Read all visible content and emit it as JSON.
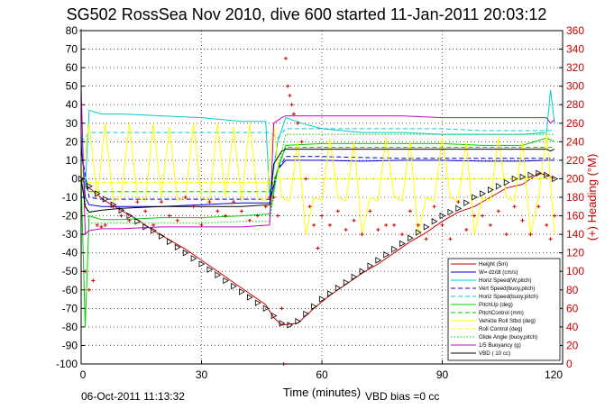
{
  "chart_data": {
    "type": "line",
    "title": "SG502 RossSea Nov 2010, dive 600 started 11-Jan-2011 20:03:12",
    "xlabel": "Time (minutes)",
    "ylabel_right": "(+) Heading (°M)",
    "xlim": [
      0,
      120
    ],
    "ylim": [
      -100,
      80
    ],
    "ylim_right": [
      0,
      360
    ],
    "x_ticks": [
      "0",
      "30",
      "60",
      "90",
      "120"
    ],
    "y_ticks": [
      "-100",
      "-90",
      "-80",
      "-70",
      "-60",
      "-50",
      "-40",
      "-30",
      "-20",
      "-10",
      "0",
      "10",
      "20",
      "30",
      "40",
      "50",
      "60",
      "70",
      "80"
    ],
    "y_ticks_right": [
      "0",
      "20",
      "40",
      "60",
      "80",
      "100",
      "120",
      "140",
      "160",
      "180",
      "200",
      "220",
      "240",
      "260",
      "280",
      "300",
      "320",
      "340",
      "360"
    ],
    "grid": true,
    "legend_position": "bottom-right",
    "footer_date": "06-Oct-2011 11:13:32",
    "footer_note": "VBD bias =0 cc",
    "series": [
      {
        "name": "Height (5m)",
        "color": "#cc0000",
        "style": "solid",
        "x": [
          0,
          2,
          6,
          10,
          14,
          18,
          22,
          26,
          30,
          34,
          38,
          42,
          46,
          48,
          50,
          54,
          58,
          62,
          66,
          70,
          74,
          78,
          82,
          86,
          90,
          94,
          98,
          102,
          106,
          110,
          114,
          116,
          118
        ],
        "y": [
          0,
          -5,
          -12,
          -17,
          -22,
          -28,
          -33,
          -38,
          -44,
          -50,
          -56,
          -62,
          -68,
          -75,
          -79,
          -78,
          -70,
          -63,
          -57,
          -51,
          -46,
          -40,
          -34,
          -29,
          -23,
          -18,
          -15,
          -10,
          -5,
          -3,
          3,
          2,
          0
        ]
      },
      {
        "name": "W= dz/dt (cm/s)",
        "color": "#0000cc",
        "style": "solid",
        "x": [
          0,
          1,
          2,
          5,
          10,
          20,
          30,
          40,
          47,
          49,
          51,
          55,
          60,
          70,
          80,
          90,
          100,
          105,
          110,
          116,
          118
        ],
        "y": [
          20,
          -10,
          -14,
          -15,
          -15,
          -15,
          -14,
          -13,
          -13,
          5,
          10,
          10,
          10,
          9.5,
          10,
          10,
          9.5,
          9.5,
          9.5,
          10,
          10
        ]
      },
      {
        "name": "Horiz Speed(W,pitch)",
        "color": "#00cccc",
        "style": "solid",
        "x": [
          0,
          1,
          2,
          5,
          10,
          20,
          30,
          40,
          46,
          47,
          49,
          51,
          55,
          60,
          70,
          80,
          90,
          100,
          110,
          116,
          117,
          118
        ],
        "y": [
          25,
          -5,
          37,
          35,
          35,
          34,
          33,
          31,
          31,
          -10,
          20,
          33,
          30,
          27,
          25,
          25,
          24,
          24,
          24,
          25,
          48,
          30
        ]
      },
      {
        "name": "Vert Speed(buoy,pitch)",
        "color": "#0000cc",
        "style": "dashed",
        "x": [
          0,
          2,
          5,
          10,
          20,
          30,
          40,
          47,
          49,
          51,
          60,
          70,
          80,
          90,
          100,
          110,
          118
        ],
        "y": [
          15,
          -10,
          -11,
          -11,
          -11,
          -11,
          -11,
          -11,
          5,
          12,
          12,
          11.5,
          11,
          11,
          11,
          11,
          11
        ]
      },
      {
        "name": "Horiz Speed(buoy,pitch)",
        "color": "#00cccc",
        "style": "dashed",
        "x": [
          0,
          2,
          5,
          10,
          20,
          30,
          40,
          47,
          49,
          51,
          60,
          70,
          80,
          90,
          100,
          110,
          118
        ],
        "y": [
          20,
          25,
          25,
          25,
          25,
          25,
          25,
          25,
          22,
          27,
          27,
          27,
          27,
          27,
          26,
          26,
          26
        ]
      },
      {
        "name": "PitchUp (deg)",
        "color": "#00cc00",
        "style": "solid",
        "x": [
          0,
          1,
          2,
          5,
          10,
          20,
          30,
          40,
          47,
          49,
          51,
          60,
          70,
          80,
          90,
          100,
          110,
          116,
          118
        ],
        "y": [
          0,
          -80,
          -20,
          -22,
          -22,
          -21,
          -21,
          -20,
          -19,
          5,
          18,
          19,
          19,
          19,
          19,
          18,
          18,
          22,
          20
        ]
      },
      {
        "name": "PitchControl (mm)",
        "color": "#00cc00",
        "style": "dashed",
        "x": [
          0,
          2,
          5,
          10,
          20,
          30,
          40,
          47,
          49,
          51,
          60,
          70,
          80,
          90,
          100,
          110,
          118
        ],
        "y": [
          0,
          -7,
          -7,
          -7,
          -7,
          -7,
          -7,
          -7,
          5,
          17,
          17,
          17,
          17,
          17,
          17,
          17,
          17
        ]
      },
      {
        "name": "Vehicle Roll Stbd (deg)",
        "color": "#ffff00",
        "style": "solid",
        "x": [
          0,
          2,
          4,
          6,
          8,
          10,
          12,
          14,
          16,
          18,
          20,
          22,
          24,
          26,
          28,
          30,
          32,
          34,
          36,
          38,
          40,
          42,
          44,
          46,
          48,
          50,
          52,
          54,
          56,
          58,
          60,
          62,
          64,
          66,
          68,
          70,
          72,
          74,
          76,
          78,
          80,
          82,
          84,
          86,
          88,
          90,
          92,
          94,
          96,
          98,
          100,
          102,
          104,
          106,
          108,
          110,
          112,
          114,
          116,
          118
        ],
        "y": [
          0,
          30,
          -10,
          30,
          -12,
          -10,
          30,
          -10,
          -12,
          30,
          -10,
          28,
          -12,
          -10,
          30,
          -10,
          -12,
          30,
          -10,
          28,
          -12,
          30,
          -10,
          -12,
          30,
          -10,
          -12,
          20,
          -30,
          -10,
          -12,
          22,
          -10,
          -12,
          20,
          -30,
          -10,
          -12,
          22,
          -10,
          -12,
          20,
          -30,
          -10,
          -12,
          22,
          -10,
          -12,
          20,
          -30,
          -10,
          -12,
          22,
          -10,
          -12,
          20,
          -30,
          -10,
          25,
          -30
        ]
      },
      {
        "name": "Roll Control (deg)",
        "color": "#ffff00",
        "style": "dashed",
        "x": [
          0,
          2,
          5,
          10,
          20,
          30,
          40,
          47,
          49,
          51,
          60,
          70,
          80,
          90,
          100,
          110,
          118
        ],
        "y": [
          0,
          -2,
          -2,
          -2,
          -2,
          -2,
          -2,
          -2,
          0,
          0,
          0,
          0,
          0,
          0,
          0,
          0,
          0
        ]
      },
      {
        "name": "Glide Angle (buoy,pitch)",
        "color": "#00cc00",
        "style": "dotted",
        "x": [
          0,
          2,
          5,
          10,
          20,
          30,
          40,
          47,
          49,
          51,
          60,
          70,
          80,
          90,
          100,
          110,
          118
        ],
        "y": [
          0,
          -24,
          -24,
          -24,
          -24,
          -24,
          -23,
          -23,
          5,
          24,
          24,
          24,
          24,
          24,
          24,
          24,
          24
        ]
      },
      {
        "name": "1/5 Buoyancy (g)",
        "color": "#cc00cc",
        "style": "solid",
        "x": [
          0,
          1,
          2,
          5,
          10,
          20,
          30,
          40,
          47,
          48,
          50,
          51,
          60,
          70,
          80,
          90,
          100,
          110,
          116,
          117,
          118
        ],
        "y": [
          50,
          -30,
          -28,
          -27,
          -27,
          -26,
          -26,
          -26,
          -25,
          30,
          33,
          34,
          34,
          34,
          34,
          33,
          33,
          33,
          33,
          30,
          32
        ]
      },
      {
        "name": "VBD ( 10 cc)",
        "color": "#000000",
        "style": "solid",
        "x": [
          0,
          1,
          2,
          5,
          10,
          20,
          30,
          40,
          47,
          48,
          50,
          51,
          60,
          70,
          80,
          90,
          100,
          110,
          116,
          117,
          118
        ],
        "y": [
          0,
          -15,
          -18,
          -17,
          -16,
          -15,
          -15,
          -15,
          -14,
          8,
          15,
          16,
          16,
          16,
          16,
          16,
          16,
          16,
          16,
          15,
          16
        ]
      }
    ],
    "markers": {
      "triangle_x": [
        0,
        2,
        4,
        6,
        8,
        10,
        12,
        14,
        16,
        18,
        20,
        22,
        24,
        26,
        28,
        30,
        32,
        34,
        36,
        38,
        40,
        42,
        44,
        46,
        48,
        50,
        52,
        54,
        56,
        58,
        60,
        62,
        64,
        66,
        68,
        70,
        72,
        74,
        76,
        78,
        80,
        82,
        84,
        86,
        88,
        90,
        92,
        94,
        96,
        98,
        100,
        102,
        104,
        106,
        108,
        110,
        112,
        114,
        116,
        118
      ],
      "triangle_y": [
        0,
        -4,
        -8,
        -11,
        -14,
        -17,
        -20,
        -23,
        -26,
        -28,
        -31,
        -34,
        -37,
        -40,
        -43,
        -46,
        -49,
        -52,
        -55,
        -58,
        -61,
        -64,
        -67,
        -70,
        -74,
        -78,
        -79,
        -77,
        -73,
        -69,
        -65,
        -62,
        -59,
        -56,
        -53,
        -50,
        -47,
        -44,
        -41,
        -38,
        -35,
        -32,
        -29,
        -26,
        -23,
        -20,
        -18,
        -16,
        -13,
        -10,
        -8,
        -6,
        -4,
        -2,
        0,
        1,
        2,
        3,
        2,
        0
      ]
    },
    "heading": {
      "color": "#cc0000",
      "x": [
        0,
        1,
        2,
        3,
        4,
        5,
        6,
        8,
        10,
        12,
        14,
        16,
        18,
        20,
        22,
        24,
        26,
        28,
        30,
        32,
        34,
        36,
        38,
        40,
        42,
        44,
        46,
        47,
        48,
        49,
        50,
        50.5,
        51,
        51.5,
        52,
        52.5,
        53,
        54,
        55,
        56,
        57,
        58,
        59,
        60,
        62,
        64,
        66,
        68,
        70,
        72,
        74,
        76,
        78,
        80,
        82,
        84,
        86,
        88,
        90,
        92,
        94,
        96,
        98,
        100,
        102,
        104,
        106,
        108,
        110,
        112,
        114,
        116,
        117,
        118
      ],
      "y": [
        360,
        100,
        80,
        90,
        150,
        148,
        150,
        170,
        160,
        155,
        175,
        165,
        150,
        175,
        160,
        155,
        180,
        170,
        150,
        175,
        165,
        160,
        175,
        165,
        155,
        160,
        170,
        180,
        180,
        160,
        60,
        0,
        330,
        300,
        290,
        280,
        270,
        260,
        240,
        200,
        170,
        150,
        125,
        160,
        150,
        165,
        145,
        155,
        140,
        165,
        145,
        150,
        150,
        140,
        165,
        150,
        135,
        170,
        150,
        135,
        175,
        145,
        160,
        160,
        150,
        165,
        140,
        170,
        155,
        140,
        170,
        150,
        135,
        160
      ]
    }
  }
}
